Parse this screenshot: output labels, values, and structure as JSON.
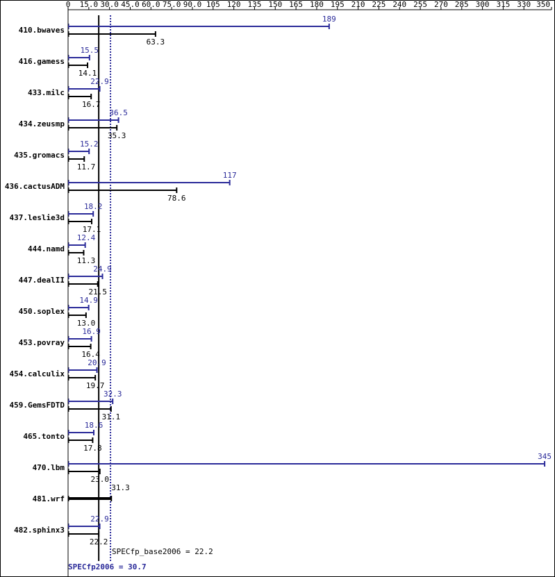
{
  "chart_data": {
    "type": "bar",
    "categories": [
      "410.bwaves",
      "416.gamess",
      "433.milc",
      "434.zeusmp",
      "435.gromacs",
      "436.cactusADM",
      "437.leslie3d",
      "444.namd",
      "447.dealII",
      "450.soplex",
      "453.povray",
      "454.calculix",
      "459.GemsFDTD",
      "465.tonto",
      "470.lbm",
      "481.wrf",
      "482.sphinx3"
    ],
    "series": [
      {
        "name": "SPECfp2006",
        "color": "#2a2a99",
        "values": [
          189,
          15.5,
          22.9,
          36.5,
          15.2,
          117,
          18.2,
          12.4,
          24.9,
          14.9,
          16.9,
          20.9,
          32.3,
          18.6,
          345,
          null,
          22.9
        ],
        "value_labels": [
          "189",
          "15.5",
          "22.9",
          "36.5",
          "15.2",
          "117",
          "18.2",
          "12.4",
          "24.9",
          "14.9",
          "16.9",
          "20.9",
          "32.3",
          "18.6",
          "345",
          null,
          "22.9"
        ]
      },
      {
        "name": "SPECfp_base2006",
        "color": "#000000",
        "values": [
          63.3,
          14.1,
          16.7,
          35.3,
          11.7,
          78.6,
          17.1,
          11.3,
          21.5,
          13,
          16.4,
          19.7,
          31.1,
          17.8,
          23,
          31.3,
          22.2
        ],
        "value_labels": [
          "63.3",
          "14.1",
          "16.7",
          "35.3",
          "11.7",
          "78.6",
          "17.1",
          "11.3",
          "21.5",
          "13.0",
          "16.4",
          "19.7",
          "31.1",
          "17.8",
          "23.0",
          "31.3",
          "22.2"
        ]
      }
    ],
    "xlim": [
      0,
      350
    ],
    "xticks": [
      0,
      {
        "value": 15,
        "label": "15.0"
      },
      {
        "value": 30,
        "label": "30.0"
      },
      {
        "value": 45,
        "label": "45.0"
      },
      {
        "value": 60,
        "label": "60.0"
      },
      {
        "value": 75,
        "label": "75.0"
      },
      {
        "value": 90,
        "label": "90.0"
      },
      105,
      120,
      135,
      150,
      165,
      180,
      195,
      210,
      225,
      240,
      255,
      270,
      285,
      300,
      315,
      330,
      350
    ],
    "base_mean": {
      "value": 22.2,
      "label": "SPECfp_base2006 = 22.2"
    },
    "peak_mean": {
      "value": 30.7,
      "label": "SPECfp2006 = 30.7"
    }
  }
}
